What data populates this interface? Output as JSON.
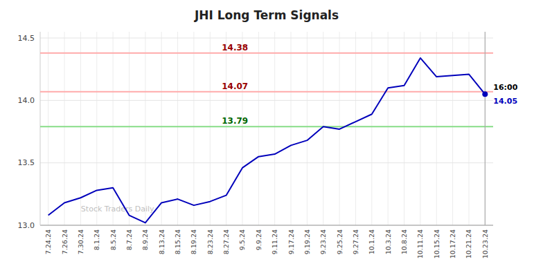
{
  "chart_data": {
    "type": "line",
    "title": "JHI Long Term Signals",
    "categories": [
      "7.24.24",
      "7.26.24",
      "7.30.24",
      "8.1.24",
      "8.5.24",
      "8.7.24",
      "8.9.24",
      "8.13.24",
      "8.15.24",
      "8.19.24",
      "8.23.24",
      "8.27.24",
      "9.5.24",
      "9.9.24",
      "9.11.24",
      "9.17.24",
      "9.19.24",
      "9.23.24",
      "9.25.24",
      "9.27.24",
      "10.1.24",
      "10.3.24",
      "10.8.24",
      "10.11.24",
      "10.15.24",
      "10.17.24",
      "10.21.24",
      "10.23.24"
    ],
    "values": [
      13.08,
      13.18,
      13.22,
      13.28,
      13.3,
      13.08,
      13.02,
      13.18,
      13.21,
      13.16,
      13.19,
      13.24,
      13.46,
      13.55,
      13.57,
      13.64,
      13.68,
      13.79,
      13.77,
      13.83,
      13.89,
      14.1,
      14.12,
      14.34,
      14.19,
      14.2,
      14.21,
      14.05
    ],
    "color": "#0000bb",
    "ylim": [
      13.0,
      14.55
    ],
    "yticks": [
      {
        "value": 13.0,
        "label": "13.0"
      },
      13.5,
      {
        "value": 14.0,
        "label": "14.0"
      },
      14.5
    ],
    "grid": true,
    "reference_lines": [
      {
        "value": 14.38,
        "label": "14.38",
        "color": "#ffaaaa",
        "label_color": "#990000"
      },
      {
        "value": 14.07,
        "label": "14.07",
        "color": "#ffaaaa",
        "label_color": "#990000"
      },
      {
        "value": 13.79,
        "label": "13.79",
        "color": "#88dd88",
        "label_color": "#006600"
      }
    ],
    "end_labels": [
      {
        "text": "16:00",
        "color": "#000000"
      },
      {
        "text": "14.05",
        "color": "#0000bb"
      }
    ],
    "watermark": {
      "text": "Stock Traders Daily",
      "color": "#c0c0c0"
    }
  }
}
